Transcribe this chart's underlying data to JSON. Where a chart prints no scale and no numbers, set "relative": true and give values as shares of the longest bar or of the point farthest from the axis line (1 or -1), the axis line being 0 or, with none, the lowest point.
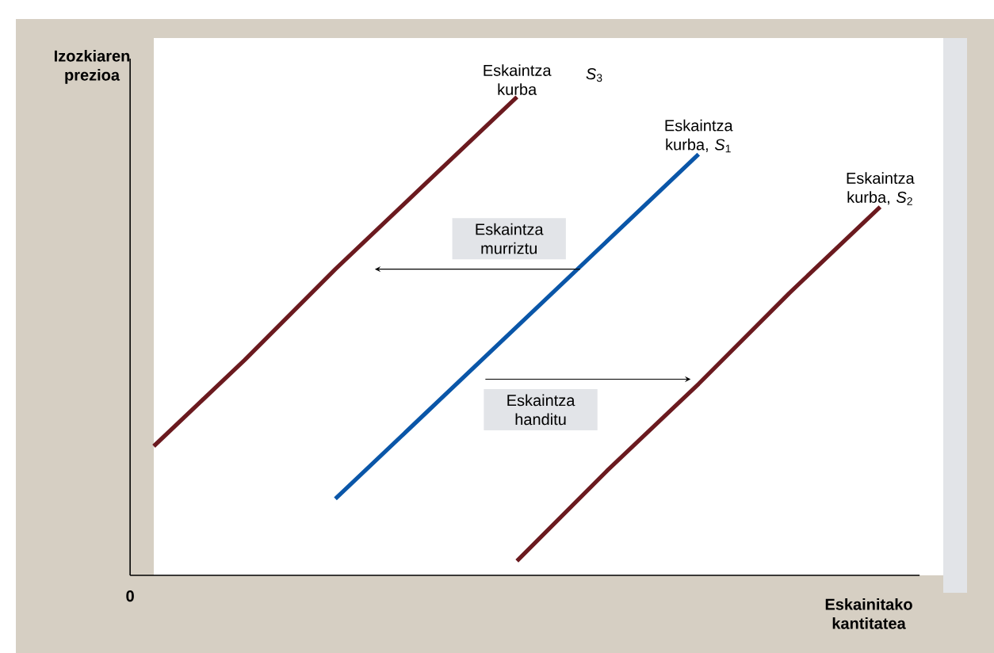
{
  "chart_data": {
    "type": "line",
    "relative": true,
    "xlabel": "Eskainitako kantitatea",
    "ylabel": "Izozkiaren prezioa",
    "marker": "none",
    "categories": [
      null,
      null,
      null,
      null,
      null,
      null,
      null,
      null,
      null
    ],
    "line_style": "solid",
    "series": [
      {
        "name": "Eskaintza kurba",
        "color": "#6b1a1f",
        "values": [
          0.27,
          0.45,
          0.64,
          0.82,
          1,
          null,
          null,
          null,
          null
        ]
      },
      {
        "name": "Eskaintza kurba, *S*$_{1}$",
        "color": "#0a56a8",
        "values": [
          null,
          null,
          0.16,
          0.34,
          0.52,
          0.7,
          0.88,
          null,
          null
        ]
      },
      {
        "name": "Eskaintza kurba, *S*$_{2}$",
        "color": "#6b1a1f",
        "values": [
          null,
          null,
          null,
          null,
          0.03,
          0.22,
          0.4,
          0.59,
          0.77
        ]
      }
    ],
    "annotations": [
      "*S*$_{3}$",
      "Eskaintza murriztu",
      "Eskaintza handitu",
      "0"
    ]
  }
}
